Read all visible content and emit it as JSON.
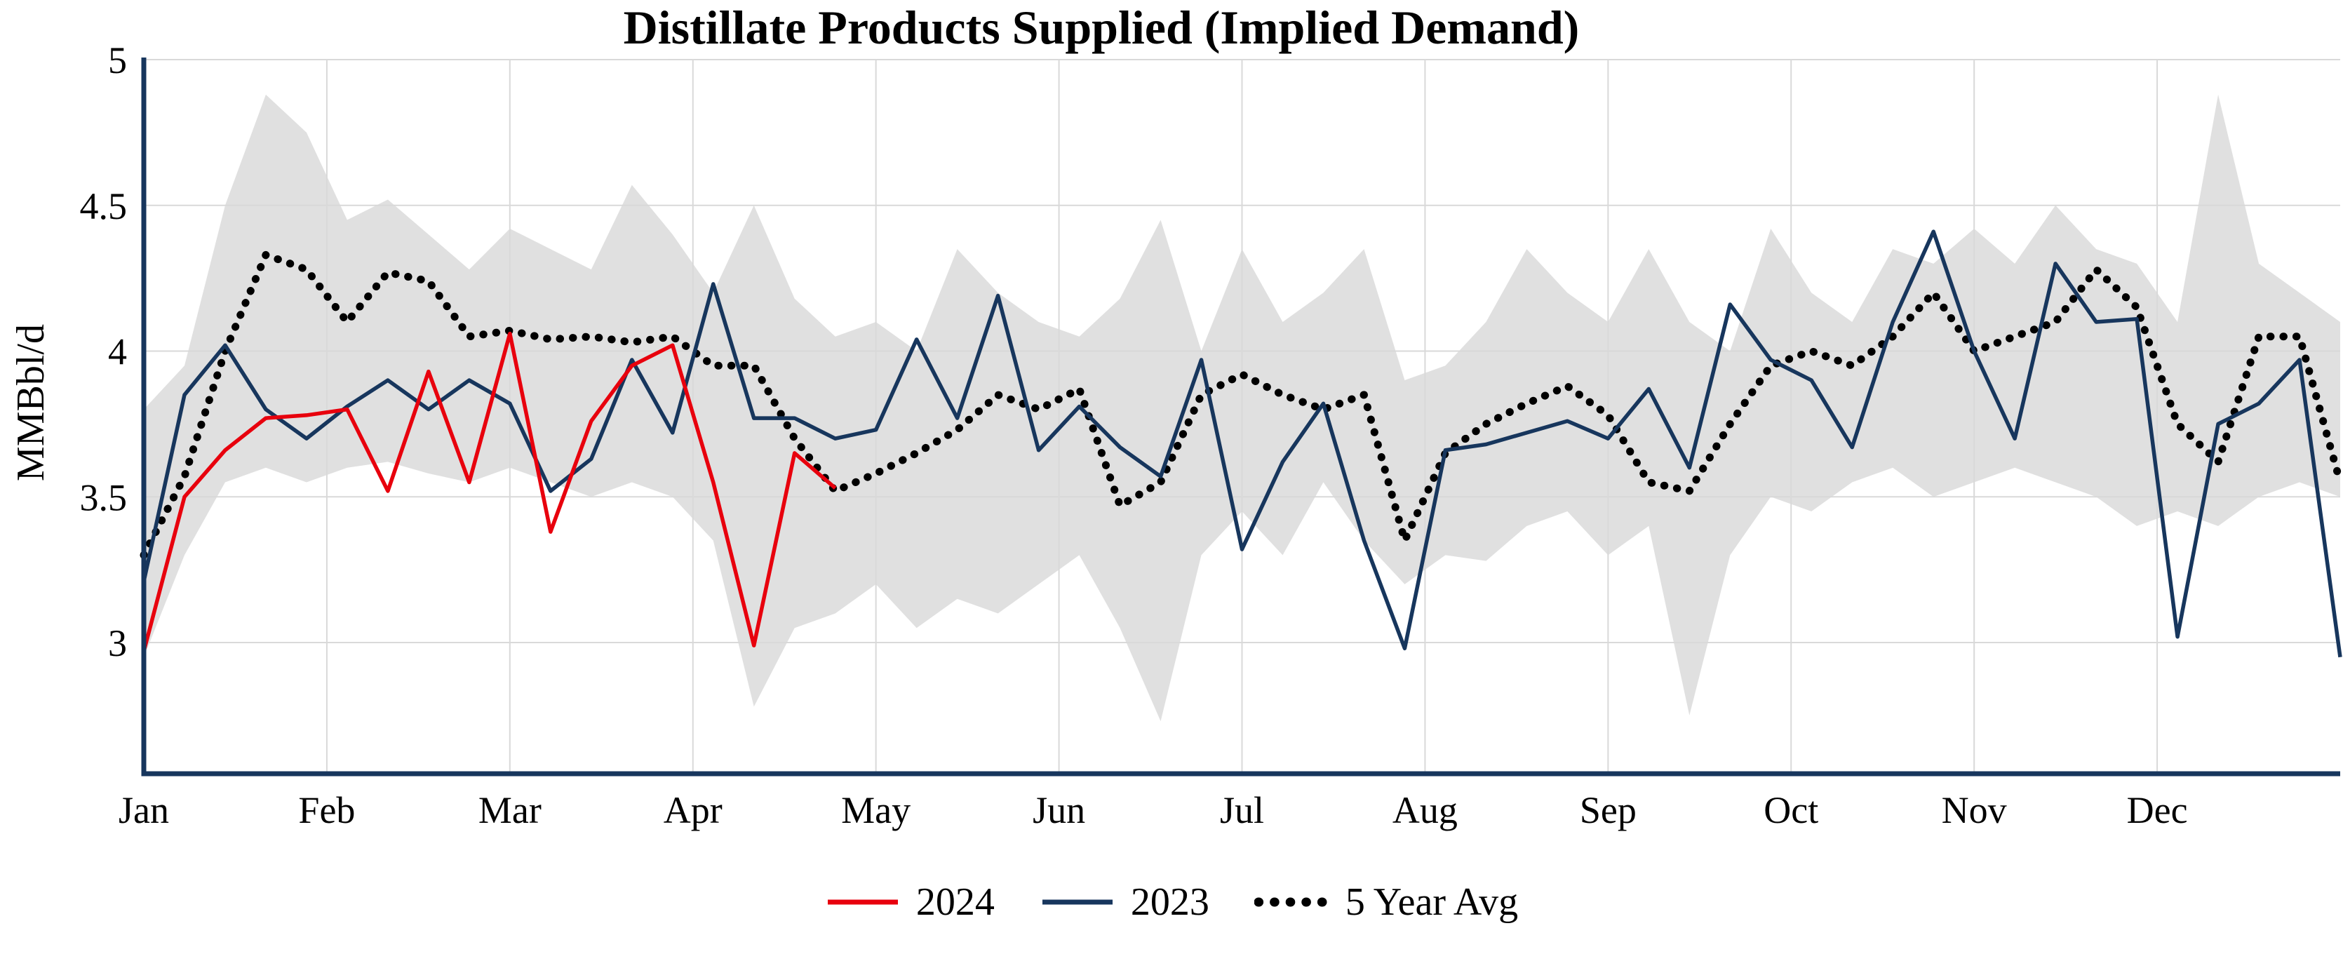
{
  "title": "Distillate Products Supplied (Implied Demand)",
  "y_axis_label": "MMBbl/d",
  "legend": [
    {
      "label": "2024",
      "color": "#e8000d",
      "style": "solid"
    },
    {
      "label": "2023",
      "color": "#17365d",
      "style": "solid"
    },
    {
      "label": "5 Year Avg",
      "color": "#000000",
      "style": "dotted"
    }
  ],
  "colors": {
    "axis": "#17365d",
    "grid": "#d9d9d9",
    "band": "#d8d8d8",
    "background": "#ffffff"
  },
  "chart_data": {
    "type": "line",
    "title": "Distillate Products Supplied (Implied Demand)",
    "xlabel": "",
    "ylabel": "MMBbl/d",
    "x_unit": "week",
    "x_tick_labels": [
      "Jan",
      "Feb",
      "Mar",
      "Apr",
      "May",
      "Jun",
      "Jul",
      "Aug",
      "Sep",
      "Oct",
      "Nov",
      "Dec"
    ],
    "y_ticks": [
      3,
      3.5,
      4,
      4.5,
      5
    ],
    "y_tick_labels": [
      "3",
      "3.5",
      "4",
      "4.5",
      "5"
    ],
    "ylim": [
      2.55,
      5.0
    ],
    "grid": true,
    "legend_position": "bottom",
    "series": [
      {
        "name": "2024",
        "color": "#e8000d",
        "style": "solid",
        "values": [
          2.97,
          3.5,
          3.66,
          3.77,
          3.78,
          3.8,
          3.52,
          3.93,
          3.55,
          4.06,
          3.38,
          3.76,
          3.95,
          4.02,
          3.55,
          2.99,
          3.65,
          3.53
        ]
      },
      {
        "name": "2023",
        "color": "#17365d",
        "style": "solid",
        "values": [
          3.21,
          3.85,
          4.02,
          3.8,
          3.7,
          3.81,
          3.9,
          3.8,
          3.9,
          3.82,
          3.52,
          3.63,
          3.97,
          3.72,
          4.23,
          3.77,
          3.77,
          3.7,
          3.73,
          4.04,
          3.77,
          4.19,
          3.66,
          3.81,
          3.67,
          3.57,
          3.97,
          3.32,
          3.62,
          3.82,
          3.35,
          2.98,
          3.66,
          3.68,
          3.72,
          3.76,
          3.7,
          3.87,
          3.6,
          4.16,
          3.97,
          3.9,
          3.67,
          4.1,
          4.41,
          4.0,
          3.7,
          4.3,
          4.1,
          4.11,
          3.02,
          3.75,
          3.82,
          3.97,
          2.95
        ]
      },
      {
        "name": "5 Year Avg",
        "color": "#000000",
        "style": "dotted",
        "values": [
          3.3,
          3.57,
          4.0,
          4.33,
          4.28,
          4.1,
          4.27,
          4.24,
          4.05,
          4.07,
          4.04,
          4.05,
          4.03,
          4.05,
          3.95,
          3.95,
          3.7,
          3.52,
          3.58,
          3.65,
          3.73,
          3.85,
          3.8,
          3.87,
          3.47,
          3.55,
          3.85,
          3.92,
          3.85,
          3.8,
          3.85,
          3.35,
          3.65,
          3.75,
          3.82,
          3.88,
          3.78,
          3.55,
          3.52,
          3.75,
          3.95,
          4.0,
          3.95,
          4.05,
          4.2,
          4.0,
          4.05,
          4.1,
          4.28,
          4.15,
          3.75,
          3.62,
          4.05,
          4.05,
          3.55
        ]
      }
    ],
    "band": {
      "color": "#d8d8d8",
      "upper": [
        3.8,
        3.95,
        4.5,
        4.88,
        4.75,
        4.45,
        4.52,
        4.4,
        4.28,
        4.42,
        4.35,
        4.28,
        4.57,
        4.4,
        4.2,
        4.5,
        4.18,
        4.05,
        4.1,
        4.0,
        4.35,
        4.2,
        4.1,
        4.05,
        4.18,
        4.45,
        4.0,
        4.35,
        4.1,
        4.2,
        4.35,
        3.9,
        3.95,
        4.1,
        4.35,
        4.2,
        4.1,
        4.35,
        4.1,
        4.0,
        4.42,
        4.2,
        4.1,
        4.35,
        4.3,
        4.42,
        4.3,
        4.5,
        4.35,
        4.3,
        4.1,
        4.88,
        4.3,
        4.2,
        4.1
      ],
      "lower": [
        2.95,
        3.3,
        3.55,
        3.6,
        3.55,
        3.6,
        3.62,
        3.58,
        3.55,
        3.6,
        3.55,
        3.5,
        3.55,
        3.5,
        3.35,
        2.78,
        3.05,
        3.1,
        3.2,
        3.05,
        3.15,
        3.1,
        3.2,
        3.3,
        3.05,
        2.73,
        3.3,
        3.45,
        3.3,
        3.55,
        3.35,
        3.2,
        3.3,
        3.28,
        3.4,
        3.45,
        3.3,
        3.4,
        2.75,
        3.3,
        3.5,
        3.45,
        3.55,
        3.6,
        3.5,
        3.55,
        3.6,
        3.55,
        3.5,
        3.4,
        3.45,
        3.4,
        3.5,
        3.55,
        3.5
      ]
    }
  }
}
